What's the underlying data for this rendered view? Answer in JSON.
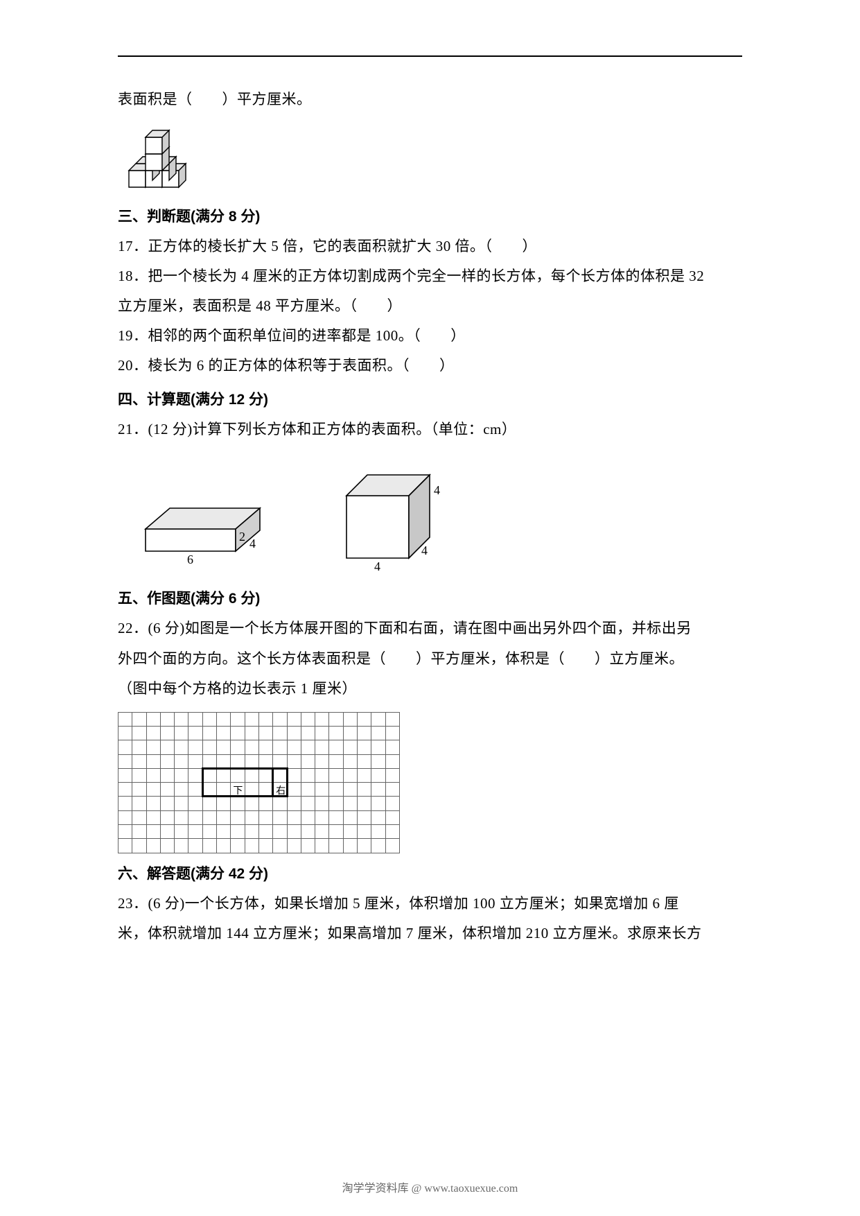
{
  "q16_tail": "表面积是（　　）平方厘米。",
  "sec3": {
    "heading": "三、判断题(满分 8 分)",
    "q17": "17．正方体的棱长扩大 5 倍，它的表面积就扩大 30 倍。（　　）",
    "q18a": "18．把一个棱长为 4 厘米的正方体切割成两个完全一样的长方体，每个长方体的体积是 32",
    "q18b": "立方厘米，表面积是 48 平方厘米。（　　）",
    "q19": "19．相邻的两个面积单位间的进率都是 100。（　　）",
    "q20": "20．棱长为 6 的正方体的体积等于表面积。（　　）"
  },
  "sec4": {
    "heading": "四、计算题(满分 12 分)",
    "q21": "21．(12 分)计算下列长方体和正方体的表面积。（单位：cm）",
    "cuboid": {
      "l": "6",
      "w": "4",
      "h": "2",
      "stroke": "#000000",
      "fill": "#ffffff",
      "shade": "#d8d8d8"
    },
    "cube": {
      "a": "4",
      "a_side": "4",
      "a_top": "4",
      "stroke": "#000000",
      "fill": "#ffffff",
      "shade": "#c8c8c8"
    }
  },
  "sec5": {
    "heading": "五、作图题(满分 6 分)",
    "q22a": "22．(6 分)如图是一个长方体展开图的下面和右面，请在图中画出另外四个面，并标出另",
    "q22b": "外四个面的方向。这个长方体表面积是（　　）平方厘米，体积是（　　）立方厘米。",
    "q22c": "（图中每个方格的边长表示 1 厘米）",
    "grid": {
      "rows": 10,
      "cols": 20,
      "cell_border": "#646464",
      "thick_border": "#000000",
      "bottom_face": {
        "row0": 5,
        "col0": 7,
        "row1": 6,
        "col1": 11,
        "label": "下"
      },
      "right_face": {
        "row0": 5,
        "col0": 12,
        "row1": 6,
        "col1": 12,
        "label": "右"
      }
    }
  },
  "sec6": {
    "heading": "六、解答题(满分 42 分)",
    "q23a": "23．(6 分)一个长方体，如果长增加 5 厘米，体积增加 100 立方厘米；如果宽增加 6 厘",
    "q23b": "米，体积就增加 144 立方厘米；如果高增加 7 厘米，体积增加 210 立方厘米。求原来长方"
  },
  "cube_stack": {
    "stroke": "#000000",
    "fill": "#ffffff",
    "shade": "#e0e0e0"
  },
  "footer": "淘学学资料库 @ www.taoxuexue.com"
}
